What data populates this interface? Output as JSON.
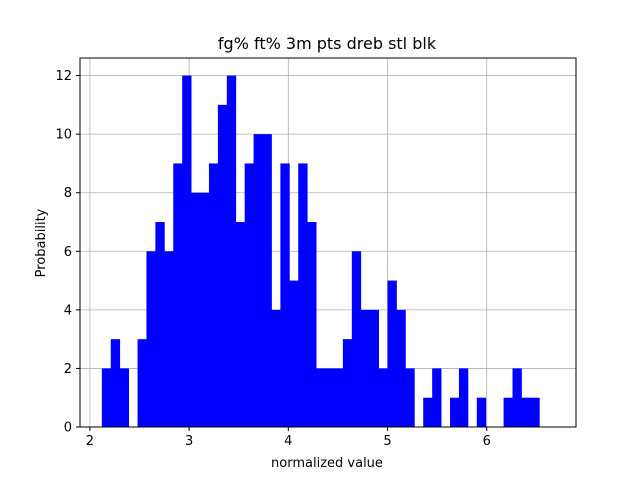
{
  "chart_data": {
    "type": "bar",
    "title": "fg% ft% 3m pts dreb stl blk",
    "xlabel": "normalized value",
    "ylabel": "Probability",
    "xlim": [
      1.9,
      6.9
    ],
    "ylim": [
      0,
      12.6
    ],
    "xticks": [
      2,
      3,
      4,
      5,
      6
    ],
    "yticks": [
      0,
      2,
      4,
      6,
      8,
      10,
      12
    ],
    "grid": true,
    "bar_color": "#0000ff",
    "bin_start": 2.12,
    "bin_width": 0.09,
    "values": [
      2,
      3,
      2,
      0,
      3,
      6,
      7,
      6,
      9,
      12,
      8,
      8,
      9,
      11,
      12,
      7,
      9,
      10,
      10,
      4,
      9,
      5,
      9,
      7,
      2,
      2,
      2,
      3,
      6,
      4,
      4,
      2,
      5,
      4,
      2,
      0,
      1,
      2,
      0,
      1,
      2,
      0,
      1,
      0,
      0,
      1,
      2,
      1,
      1
    ]
  }
}
